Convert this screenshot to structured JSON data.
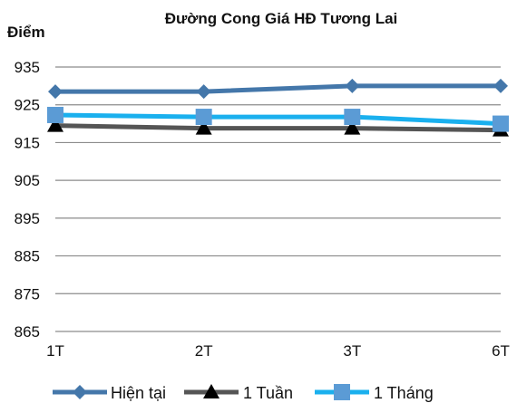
{
  "chart_data": {
    "type": "line",
    "title": "Đường Cong Giá HĐ Tương Lai",
    "xlabel": "",
    "ylabel": "Điểm",
    "categories": [
      "1T",
      "2T",
      "3T",
      "6T"
    ],
    "ylim": [
      865,
      935
    ],
    "yticks": [
      865,
      875,
      885,
      895,
      905,
      915,
      925,
      935
    ],
    "grid": "horizontal",
    "legend": "bottom",
    "series": [
      {
        "name": "Hiện tại",
        "values": [
          928.5,
          928.5,
          930.0,
          930.0
        ],
        "color": "#4477aa",
        "marker": "diamond"
      },
      {
        "name": "1 Tuần",
        "values": [
          919.5,
          918.8,
          918.8,
          918.3
        ],
        "color": "#555555",
        "marker": "triangle"
      },
      {
        "name": "1 Tháng",
        "values": [
          922.3,
          921.8,
          921.8,
          920.0
        ],
        "color": "#1ab0ee",
        "marker": "square"
      }
    ]
  }
}
